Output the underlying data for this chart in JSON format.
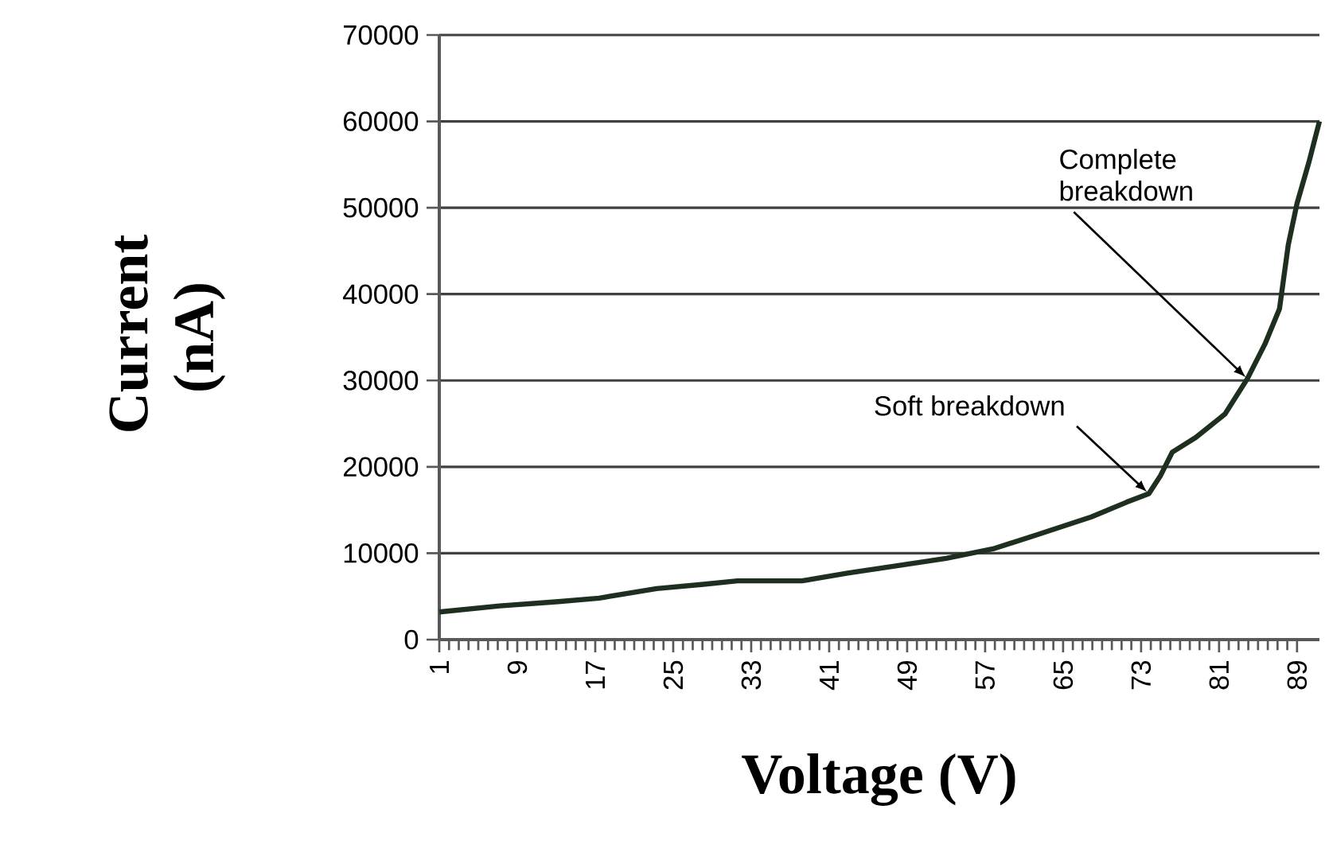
{
  "chart_data": {
    "type": "line",
    "xlabel": "Voltage (V)",
    "ylabel": "Current (nA)",
    "x": [
      1,
      7.2,
      13.2,
      17.4,
      23.3,
      28.1,
      31.6,
      38.2,
      42.9,
      47.7,
      53,
      57.8,
      62.5,
      67.9,
      71.5,
      73.8,
      75,
      76.2,
      78.6,
      81.6,
      83.9,
      85.7,
      87.2,
      88.1,
      89,
      90.2,
      91.3
    ],
    "values": [
      3200,
      3900,
      4400,
      4800,
      5900,
      6400,
      6800,
      6800,
      7700,
      8500,
      9400,
      10500,
      12200,
      14200,
      15900,
      16900,
      19000,
      21700,
      23400,
      26100,
      30200,
      34200,
      38300,
      45700,
      50500,
      55200,
      60000
    ],
    "color": "#1f2f1f",
    "xlim": [
      1,
      91.3
    ],
    "xticks": [
      1,
      9,
      17,
      25,
      33,
      41,
      49,
      57,
      65,
      73,
      81,
      89
    ],
    "ylim": [
      0,
      70000
    ],
    "yticks": [
      0,
      10000,
      20000,
      30000,
      40000,
      50000,
      60000,
      70000
    ],
    "grid": "y",
    "marker": "none",
    "line_style": "solid",
    "annotations": [
      {
        "text": "Soft breakdown",
        "x": 73.8,
        "y": 16900
      },
      {
        "text": "Complete breakdown",
        "x": 83.9,
        "y": 30200
      }
    ]
  }
}
